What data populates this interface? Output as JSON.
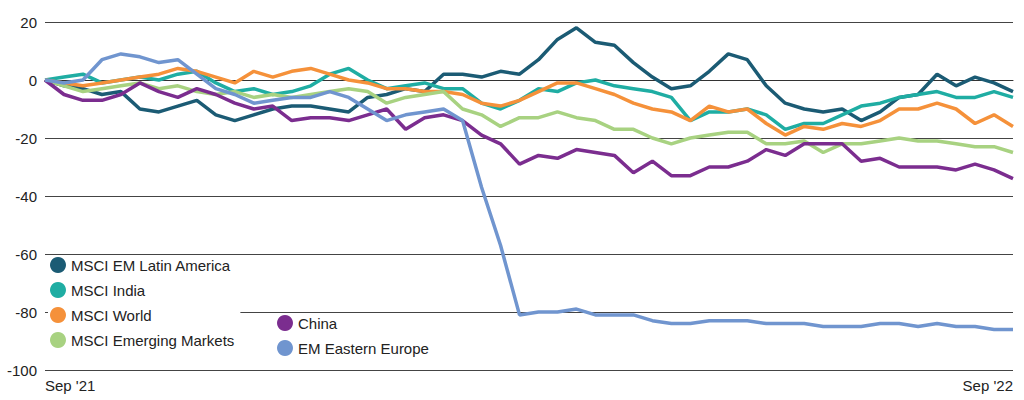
{
  "chart_data": {
    "type": "line",
    "categories": [
      "Sep '21",
      null,
      null,
      null,
      null,
      null,
      null,
      null,
      null,
      null,
      null,
      null,
      null,
      null,
      null,
      null,
      null,
      null,
      null,
      null,
      null,
      null,
      null,
      null,
      null,
      null,
      null,
      null,
      null,
      null,
      null,
      null,
      null,
      null,
      null,
      null,
      null,
      null,
      null,
      null,
      null,
      null,
      null,
      null,
      null,
      null,
      null,
      null,
      null,
      null,
      null,
      "Sep '22"
    ],
    "series": [
      {
        "name": "MSCI EM Latin America",
        "color": "#1b5b74",
        "values": [
          0,
          -2,
          -3,
          -5,
          -4,
          -10,
          -11,
          -9,
          -7,
          -12,
          -14,
          -12,
          -10,
          -9,
          -9,
          -10,
          -11,
          -6,
          -5,
          -3,
          -4,
          2,
          2,
          1,
          3,
          2,
          7,
          14,
          18,
          13,
          12,
          6,
          1,
          -3,
          -2,
          3,
          9,
          7,
          -2,
          -8,
          -10,
          -11,
          -10,
          -14,
          -11,
          -6,
          -5,
          2,
          -2,
          1,
          -1,
          -4
        ]
      },
      {
        "name": "MSCI India",
        "color": "#1fada3",
        "values": [
          0,
          1,
          2,
          -1,
          0,
          1,
          0,
          2,
          3,
          -1,
          -4,
          -3,
          -5,
          -4,
          -2,
          2,
          4,
          0,
          -3,
          -2,
          -1,
          -3,
          -3,
          -8,
          -10,
          -7,
          -3,
          -4,
          -1,
          0,
          -2,
          -3,
          -4,
          -6,
          -14,
          -11,
          -11,
          -10,
          -12,
          -17,
          -15,
          -15,
          -12,
          -9,
          -8,
          -6,
          -5,
          -4,
          -6,
          -6,
          -4,
          -6
        ]
      },
      {
        "name": "MSCI World",
        "color": "#f5913a",
        "values": [
          0,
          -1,
          -2,
          -1,
          0,
          1,
          2,
          4,
          3,
          1,
          -1,
          3,
          1,
          3,
          4,
          2,
          0,
          -1,
          -3,
          -3,
          -4,
          -4,
          -5,
          -8,
          -9,
          -7,
          -4,
          -1,
          -1,
          -3,
          -5,
          -8,
          -10,
          -11,
          -14,
          -9,
          -11,
          -10,
          -15,
          -19,
          -16,
          -17,
          -15,
          -16,
          -14,
          -10,
          -10,
          -8,
          -10,
          -15,
          -12,
          -16
        ]
      },
      {
        "name": "MSCI Emerging Markets",
        "color": "#a8d281",
        "values": [
          0,
          -2,
          -4,
          -3,
          -2,
          -1,
          -3,
          -2,
          -4,
          -5,
          -4,
          -6,
          -5,
          -6,
          -5,
          -4,
          -3,
          -4,
          -8,
          -6,
          -5,
          -4,
          -10,
          -12,
          -16,
          -13,
          -13,
          -11,
          -13,
          -14,
          -17,
          -17,
          -20,
          -22,
          -20,
          -19,
          -18,
          -18,
          -22,
          -22,
          -21,
          -25,
          -22,
          -22,
          -21,
          -20,
          -21,
          -21,
          -22,
          -23,
          -23,
          -25
        ]
      },
      {
        "name": "China",
        "color": "#7b2d8f",
        "values": [
          0,
          -5,
          -7,
          -7,
          -5,
          -1,
          -4,
          -6,
          -3,
          -5,
          -8,
          -10,
          -9,
          -14,
          -13,
          -13,
          -14,
          -12,
          -10,
          -17,
          -13,
          -12,
          -14,
          -19,
          -22,
          -29,
          -26,
          -27,
          -24,
          -25,
          -26,
          -32,
          -28,
          -33,
          -33,
          -30,
          -30,
          -28,
          -24,
          -26,
          -22,
          -22,
          -22,
          -28,
          -27,
          -30,
          -30,
          -30,
          -31,
          -29,
          -31,
          -34
        ]
      },
      {
        "name": "EM Eastern Europe",
        "color": "#7095cf",
        "values": [
          0,
          -1,
          0,
          7,
          9,
          8,
          6,
          7,
          2,
          -3,
          -5,
          -8,
          -7,
          -6,
          -6,
          -4,
          -6,
          -10,
          -14,
          -12,
          -11,
          -10,
          -14,
          -37,
          -57,
          -81,
          -80,
          -80,
          -79,
          -81,
          -81,
          -81,
          -83,
          -84,
          -84,
          -83,
          -83,
          -83,
          -84,
          -84,
          -84,
          -85,
          -85,
          -85,
          -84,
          -84,
          -85,
          -84,
          -85,
          -85,
          -86,
          -86
        ]
      }
    ],
    "ylim": [
      -100,
      20
    ],
    "yticks": [
      -100,
      -80,
      -60,
      -40,
      -20,
      0,
      20
    ],
    "grid": true,
    "legend": "lower left"
  }
}
